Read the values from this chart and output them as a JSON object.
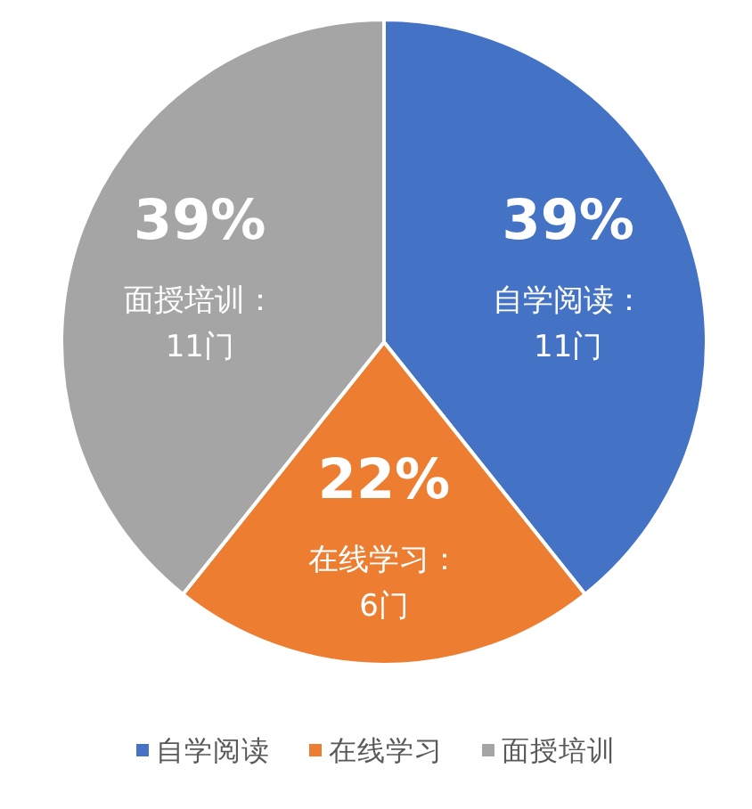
{
  "chart_data": {
    "type": "pie",
    "categories": [
      "自学阅读",
      "在线学习",
      "面授培训"
    ],
    "values": [
      11,
      6,
      11
    ],
    "colors": [
      "#4472c4",
      "#ed7d31",
      "#a5a5a5"
    ],
    "value_labels": [
      "39%\n自学阅读：\n11门",
      "22%\n在线学习：\n6门",
      "39%\n面授培训：\n11门"
    ],
    "legend": "bottom"
  }
}
